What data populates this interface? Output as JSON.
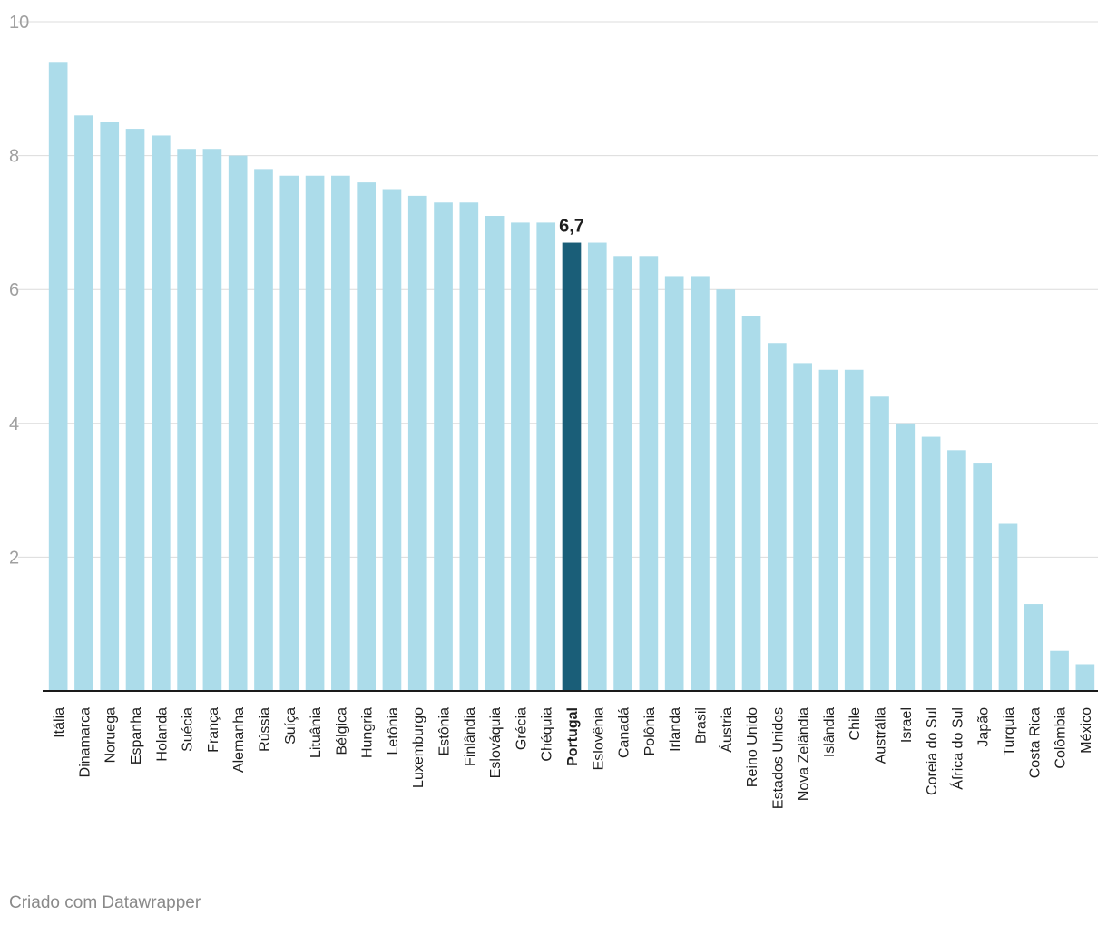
{
  "chart_data": {
    "type": "bar",
    "title": "",
    "xlabel": "",
    "ylabel": "",
    "ylim": [
      0,
      10
    ],
    "yticks": [
      2,
      4,
      6,
      8,
      10
    ],
    "grid": true,
    "categories": [
      "Itália",
      "Dinamarca",
      "Noruega",
      "Espanha",
      "Holanda",
      "Suécia",
      "França",
      "Alemanha",
      "Rússia",
      "Suíça",
      "Lituânia",
      "Bélgica",
      "Hungria",
      "Letônia",
      "Luxemburgo",
      "Estônia",
      "Finlândia",
      "Eslováquia",
      "Grécia",
      "Chéquia",
      "Portugal",
      "Eslovênia",
      "Canadá",
      "Polônia",
      "Irlanda",
      "Brasil",
      "Áustria",
      "Reino Unido",
      "Estados Unidos",
      "Nova Zelândia",
      "Islândia",
      "Chile",
      "Austrália",
      "Israel",
      "Coreia do Sul",
      "África do Sul",
      "Japão",
      "Turquia",
      "Costa Rica",
      "Colômbia",
      "México"
    ],
    "values": [
      9.4,
      8.6,
      8.5,
      8.4,
      8.3,
      8.1,
      8.1,
      8.0,
      7.8,
      7.7,
      7.7,
      7.7,
      7.6,
      7.5,
      7.4,
      7.3,
      7.3,
      7.1,
      7.0,
      7.0,
      6.7,
      6.7,
      6.5,
      6.5,
      6.2,
      6.2,
      6.0,
      5.6,
      5.2,
      4.9,
      4.8,
      4.8,
      4.4,
      4.0,
      3.8,
      3.6,
      3.4,
      2.5,
      1.3,
      0.6,
      0.4
    ],
    "highlight": "Portugal",
    "highlight_label": "6,7",
    "colors": {
      "bar": "#acdcea",
      "highlight": "#1a5e78"
    }
  },
  "footer": {
    "credit": "Criado com Datawrapper"
  }
}
